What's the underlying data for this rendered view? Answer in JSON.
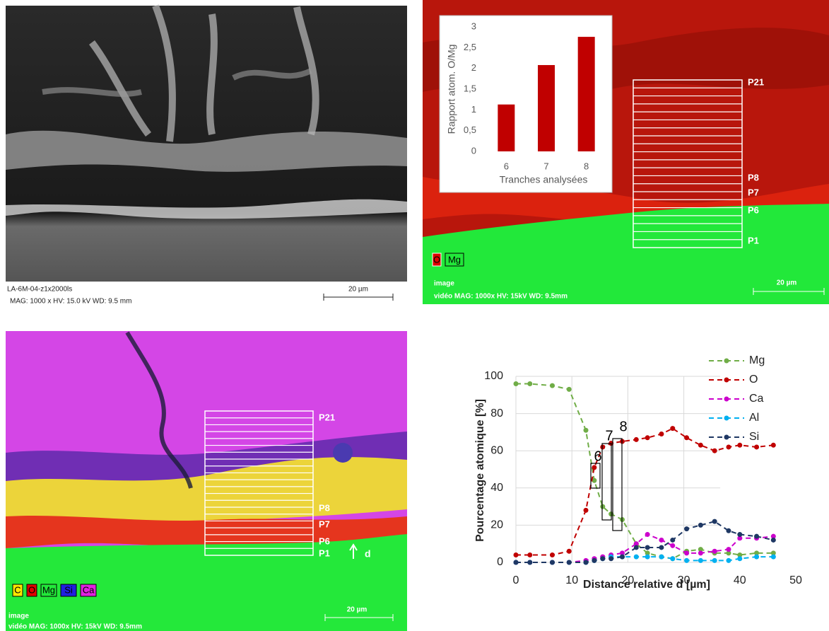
{
  "panels": [
    {
      "caption": "LA-6M-04-z1x2000ls",
      "info": "MAG: 1000 x  HV: 15.0 kV  WD: 9.5 mm",
      "scale": "20 µm"
    },
    {
      "slices": [
        "P21",
        "P8",
        "P7",
        "P6",
        "P1"
      ],
      "legend": [
        "O",
        "Mg"
      ],
      "caption": "image",
      "info": "vidéo  MAG: 1000x  HV: 15kV  WD: 9.5mm",
      "scale": "20 µm"
    },
    {
      "slices": [
        "P21",
        "P8",
        "P7",
        "P6",
        "P1"
      ],
      "legend": [
        "C",
        "O",
        "Mg",
        "Si",
        "Ca"
      ],
      "caption": "image",
      "info": "vidéo  MAG: 1000x  HV: 15kV  WD: 9.5mm",
      "scale": "20 µm",
      "direction": "d"
    }
  ],
  "chart_data": [
    {
      "type": "bar",
      "x_label": "Tranches analysées",
      "y_label": "Rapport atom. O/Mg",
      "categories": [
        "6",
        "7",
        "8"
      ],
      "values": [
        1.13,
        2.08,
        2.76
      ],
      "color": "#c00000",
      "ylim": [
        0,
        3
      ],
      "yticks": [
        0,
        {
          "value": 0.5,
          "label": "0,5"
        },
        1,
        {
          "value": 1.5,
          "label": "1,5"
        },
        2,
        {
          "value": 2.5,
          "label": "2,5"
        },
        3
      ],
      "grid": false
    },
    {
      "type": "line",
      "x_label": "Distance relative d [µm]",
      "y_label": "Pourcentage atomique [%]",
      "x": [
        0,
        2.5,
        6.5,
        9.5,
        12.5,
        14,
        15.5,
        17,
        19,
        21.5,
        23.5,
        26,
        28,
        30.5,
        33,
        35.5,
        38,
        40,
        43,
        46
      ],
      "series": [
        {
          "name": "Mg",
          "color": "#70ad47",
          "values": [
            96,
            96,
            95,
            93,
            71,
            44,
            30,
            26,
            23,
            10,
            5,
            3,
            2,
            6,
            7,
            5,
            5,
            4,
            5,
            5
          ]
        },
        {
          "name": "O",
          "color": "#c00000",
          "values": [
            4,
            4,
            4,
            6,
            28,
            51,
            62,
            64,
            65,
            66,
            67,
            69,
            72,
            67,
            63,
            60,
            62,
            63,
            62,
            63
          ]
        },
        {
          "name": "Ca",
          "color": "#cc00cc",
          "values": [
            0,
            0,
            0,
            0,
            1,
            2,
            3,
            4,
            5,
            10,
            15,
            12,
            9,
            5,
            5,
            6,
            7,
            13,
            13,
            14
          ]
        },
        {
          "name": "Al",
          "color": "#00b0f0",
          "values": [
            0,
            0,
            0,
            0,
            0,
            1,
            2,
            3,
            3,
            3,
            3,
            3,
            2,
            1,
            1,
            1,
            1,
            2,
            3,
            3
          ]
        },
        {
          "name": "Si",
          "color": "#1f3864",
          "values": [
            0,
            0,
            0,
            0,
            0,
            1,
            2,
            2,
            3,
            8,
            8,
            8,
            12,
            18,
            20,
            22,
            17,
            15,
            14,
            12
          ]
        }
      ],
      "annotations": [
        "6",
        "7",
        "8"
      ],
      "xlim": [
        0,
        50
      ],
      "xticks": [
        0,
        10,
        20,
        30,
        40,
        50
      ],
      "ylim": [
        0,
        100
      ],
      "yticks": [
        0,
        20,
        40,
        60,
        80,
        100
      ],
      "grid": true,
      "legend": "top-right"
    }
  ]
}
